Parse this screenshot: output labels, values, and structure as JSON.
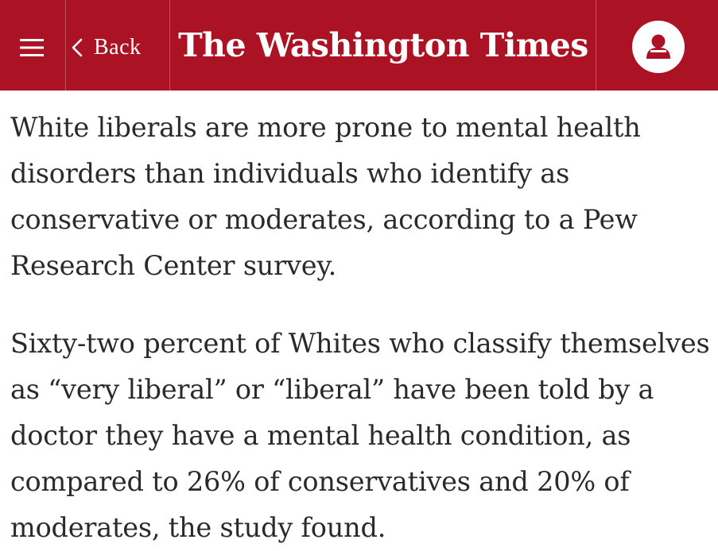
{
  "header": {
    "back_label": "Back",
    "logo_text": "The Washington Times",
    "background_color": "#ab1324",
    "icons": {
      "menu": "hamburger-menu-icon",
      "back": "chevron-left-icon",
      "account": "user-account-icon"
    }
  },
  "article": {
    "paragraphs": [
      "White liberals are more prone to mental health disorders than individuals who identify as conservative or moderates, according to a Pew Research Center survey.",
      "Sixty-two percent of Whites who classify themselves as “very liberal” or “liberal” have been told by a doctor they have a mental health condition, as compared to 26% of conservatives and 20% of moderates, the study found."
    ]
  }
}
